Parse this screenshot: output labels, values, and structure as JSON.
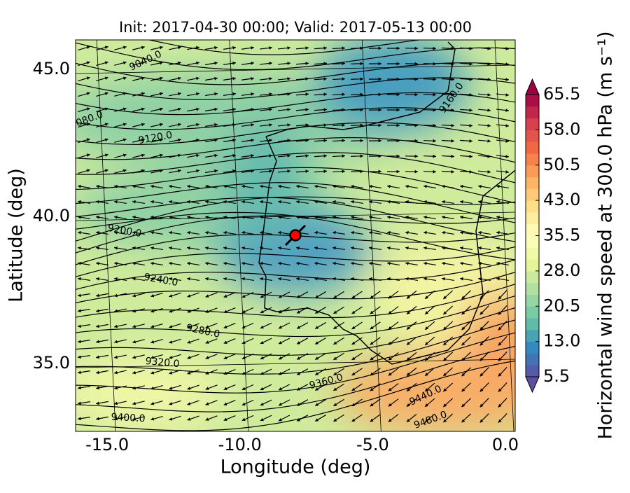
{
  "chart_data": {
    "type": "contour-map",
    "title": "Init: 2017-04-30 00:00; Valid: 2017-05-13 00:00",
    "x_label": "Longitude (deg)",
    "y_label": "Latitude (deg)",
    "xlim": [
      -16.19,
      0.37
    ],
    "ylim": [
      32.69,
      46.0
    ],
    "xticks": [
      {
        "value": -15,
        "label": "-15.0"
      },
      {
        "value": -10,
        "label": "-10.0"
      },
      {
        "value": -5,
        "label": "-5.0"
      },
      {
        "value": 0,
        "label": "0.0"
      }
    ],
    "yticks": [
      {
        "value": 35,
        "label": "35.0"
      },
      {
        "value": 40,
        "label": "40.0"
      },
      {
        "value": 45,
        "label": "45.0"
      }
    ],
    "colorbar": {
      "label": "Horizontal wind speed at 300.0 hPa (m s⁻¹)",
      "lim": [
        5.5,
        65.5
      ],
      "ticks": [
        5.5,
        {
          "value": 13,
          "label": "13.0"
        },
        20.5,
        {
          "value": 28,
          "label": "28.0"
        },
        35.5,
        {
          "value": 43,
          "label": "43.0"
        },
        50.5,
        {
          "value": 58,
          "label": "58.0"
        },
        65.5
      ]
    },
    "contour_labels": [
      "9040.0",
      "080.0",
      "9120.0",
      "9160.0",
      "9200.0",
      "9240.0",
      "9280.0",
      "9320.0",
      "9360.0",
      "9400.0",
      "9440.0",
      "9480.0"
    ]
  }
}
